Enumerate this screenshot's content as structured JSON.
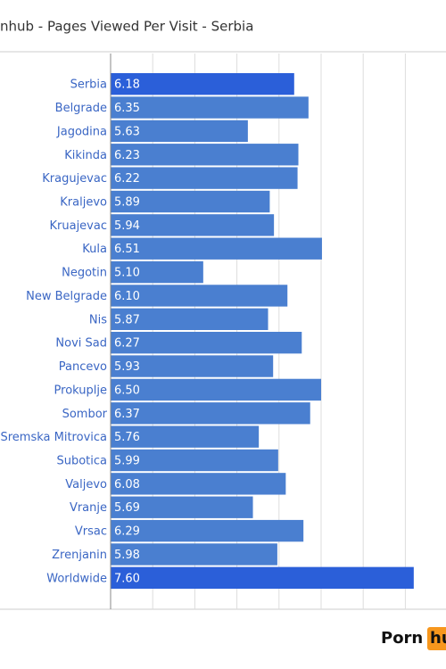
{
  "chart_data": {
    "type": "barh",
    "title": "nhub - Pages Viewed Per Visit - Serbia",
    "categories": [
      "Serbia",
      "Belgrade",
      "Jagodina",
      "Kikinda",
      "Kragujevac",
      "Kraljevo",
      "Kruajevac",
      "Kula",
      "Negotin",
      "New Belgrade",
      "Nis",
      "Novi Sad",
      "Pancevo",
      "Prokuplje",
      "Sombor",
      "Sremska Mitrovica",
      "Subotica",
      "Valjevo",
      "Vranje",
      "Vrsac",
      "Zrenjanin",
      "Worldwide"
    ],
    "values": [
      6.18,
      6.35,
      5.63,
      6.23,
      6.22,
      5.89,
      5.94,
      6.51,
      5.1,
      6.1,
      5.87,
      6.27,
      5.93,
      6.5,
      6.37,
      5.76,
      5.99,
      6.08,
      5.69,
      6.29,
      5.98,
      7.6
    ],
    "value_labels": [
      "6.18",
      "6.35",
      "5.63",
      "6.23",
      "6.22",
      "5.89",
      "5.94",
      "6.51",
      "5.10",
      "6.10",
      "5.87",
      "6.27",
      "5.93",
      "6.50",
      "6.37",
      "5.76",
      "5.99",
      "6.08",
      "5.69",
      "6.29",
      "5.98",
      "7.60"
    ],
    "colors": [
      "#2b5fd9",
      "#4a7fd0",
      "#4a7fd0",
      "#4a7fd0",
      "#4a7fd0",
      "#4a7fd0",
      "#4a7fd0",
      "#4a7fd0",
      "#4a7fd0",
      "#4a7fd0",
      "#4a7fd0",
      "#4a7fd0",
      "#4a7fd0",
      "#4a7fd0",
      "#4a7fd0",
      "#4a7fd0",
      "#4a7fd0",
      "#4a7fd0",
      "#4a7fd0",
      "#4a7fd0",
      "#4a7fd0",
      "#2b5fd9"
    ],
    "xlim": [
      4,
      8
    ],
    "xticks": [
      4.5,
      5,
      5.5,
      6,
      6.5,
      7,
      7.5
    ],
    "grid": true
  },
  "logo": {
    "left": "Porn",
    "right": "hu"
  }
}
